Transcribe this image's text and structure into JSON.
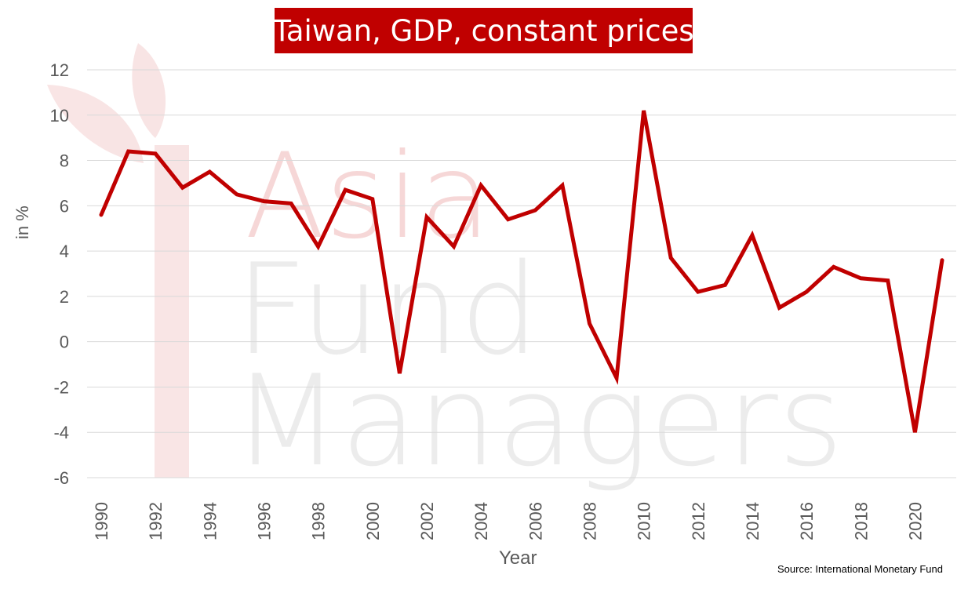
{
  "chart_data": {
    "type": "line",
    "title": "Taiwan, GDP, constant prices",
    "xlabel": "Year",
    "ylabel": "in %",
    "source": "Source: International Monetary Fund",
    "watermark": [
      "Asia",
      "Fund",
      "Managers"
    ],
    "ylim": [
      -6,
      12
    ],
    "yticks": [
      -6,
      -4,
      -2,
      0,
      2,
      4,
      6,
      8,
      10,
      12
    ],
    "xticks": [
      1990,
      1992,
      1994,
      1996,
      1998,
      2000,
      2002,
      2004,
      2006,
      2008,
      2010,
      2012,
      2014,
      2016,
      2018,
      2020
    ],
    "grid": "horizontal",
    "x": [
      1990,
      1991,
      1992,
      1993,
      1994,
      1995,
      1996,
      1997,
      1998,
      1999,
      2000,
      2001,
      2002,
      2003,
      2004,
      2005,
      2006,
      2007,
      2008,
      2009,
      2010,
      2011,
      2012,
      2013,
      2014,
      2015,
      2016,
      2017,
      2018,
      2019,
      2020,
      2021
    ],
    "series": [
      {
        "values": [
          5.6,
          8.4,
          8.3,
          6.8,
          7.5,
          6.5,
          6.2,
          6.1,
          4.2,
          6.7,
          6.3,
          -1.4,
          5.5,
          4.2,
          6.9,
          5.4,
          5.8,
          6.9,
          0.8,
          -1.6,
          10.2,
          3.7,
          2.2,
          2.5,
          4.7,
          1.5,
          2.2,
          3.3,
          2.8,
          2.7,
          -4.0,
          3.6
        ],
        "color": "#c00000"
      }
    ]
  }
}
